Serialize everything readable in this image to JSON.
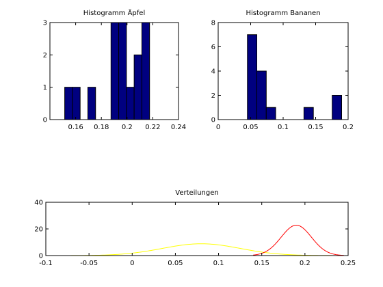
{
  "chart_data": [
    {
      "type": "bar",
      "title": "Histogramm Äpfel",
      "xlabel": "",
      "ylabel": "",
      "xlim": [
        0.14,
        0.24
      ],
      "ylim": [
        0,
        3
      ],
      "xticks": [
        0.16,
        0.18,
        0.2,
        0.22,
        0.24
      ],
      "xtick_labels": [
        "0.16",
        "0.18",
        "0.2",
        "0.22",
        "0.24"
      ],
      "yticks": [
        0,
        1,
        2,
        3
      ],
      "ytick_labels": [
        "0",
        "1",
        "2",
        "3"
      ],
      "bar_color": "#000080",
      "bins": [
        {
          "x0": 0.1515,
          "x1": 0.1575,
          "value": 1
        },
        {
          "x0": 0.1575,
          "x1": 0.1635,
          "value": 1
        },
        {
          "x0": 0.1635,
          "x1": 0.1695,
          "value": 0
        },
        {
          "x0": 0.1695,
          "x1": 0.1755,
          "value": 1
        },
        {
          "x0": 0.1755,
          "x1": 0.1815,
          "value": 0
        },
        {
          "x0": 0.1815,
          "x1": 0.1875,
          "value": 0
        },
        {
          "x0": 0.1875,
          "x1": 0.1935,
          "value": 3
        },
        {
          "x0": 0.1935,
          "x1": 0.1995,
          "value": 3
        },
        {
          "x0": 0.1995,
          "x1": 0.2055,
          "value": 1
        },
        {
          "x0": 0.2055,
          "x1": 0.2115,
          "value": 2
        },
        {
          "x0": 0.2115,
          "x1": 0.2175,
          "value": 3
        }
      ]
    },
    {
      "type": "bar",
      "title": "Histogramm Bananen",
      "xlabel": "",
      "ylabel": "",
      "xlim": [
        0,
        0.2
      ],
      "ylim": [
        0,
        8
      ],
      "xticks": [
        0,
        0.05,
        0.1,
        0.15,
        0.2
      ],
      "xtick_labels": [
        "0",
        "0.05",
        "0.1",
        "0.15",
        "0.2"
      ],
      "yticks": [
        0,
        2,
        4,
        6,
        8
      ],
      "ytick_labels": [
        "0",
        "2",
        "4",
        "6",
        "8"
      ],
      "bar_color": "#000080",
      "bins": [
        {
          "x0": 0.045,
          "x1": 0.0595,
          "value": 7
        },
        {
          "x0": 0.0595,
          "x1": 0.074,
          "value": 4
        },
        {
          "x0": 0.074,
          "x1": 0.0885,
          "value": 1
        },
        {
          "x0": 0.0885,
          "x1": 0.103,
          "value": 0
        },
        {
          "x0": 0.103,
          "x1": 0.1175,
          "value": 0
        },
        {
          "x0": 0.1175,
          "x1": 0.132,
          "value": 0
        },
        {
          "x0": 0.132,
          "x1": 0.1465,
          "value": 1
        },
        {
          "x0": 0.1465,
          "x1": 0.161,
          "value": 0
        },
        {
          "x0": 0.161,
          "x1": 0.1755,
          "value": 0
        },
        {
          "x0": 0.1755,
          "x1": 0.19,
          "value": 2
        }
      ]
    },
    {
      "type": "line",
      "title": "Verteilungen",
      "xlabel": "",
      "ylabel": "",
      "xlim": [
        -0.1,
        0.25
      ],
      "ylim": [
        0,
        40
      ],
      "xticks": [
        -0.1,
        -0.05,
        0,
        0.05,
        0.1,
        0.15,
        0.2,
        0.25
      ],
      "xtick_labels": [
        "-0.1",
        "-0.05",
        "0",
        "0.05",
        "0.1",
        "0.15",
        "0.2",
        "0.25"
      ],
      "yticks": [
        0,
        20,
        40
      ],
      "ytick_labels": [
        "0",
        "20",
        "40"
      ],
      "series": [
        {
          "color": "#ffff00",
          "x_range": [
            -0.08,
            0.24
          ],
          "mean": 0.08,
          "std": 0.045
        },
        {
          "color": "#ff0000",
          "x_range": [
            0.14,
            0.245
          ],
          "mean": 0.19,
          "std": 0.0175
        }
      ]
    }
  ]
}
